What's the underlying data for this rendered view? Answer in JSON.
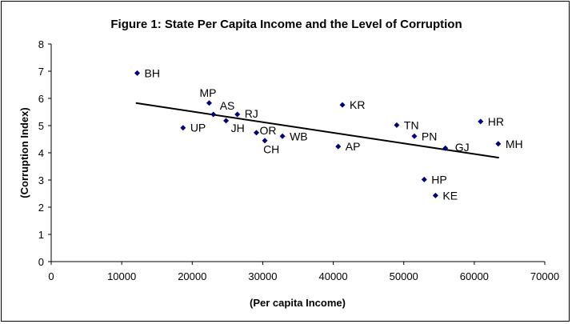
{
  "chart_data": {
    "type": "scatter",
    "title": "Figure 1: State Per Capita Income and the Level of Corruption",
    "xlabel": "(Per capita Income)",
    "ylabel": "(Corruption Index)",
    "xlim": [
      0,
      70000
    ],
    "ylim": [
      0,
      8
    ],
    "xticks": [
      0,
      10000,
      20000,
      30000,
      40000,
      50000,
      60000,
      70000
    ],
    "yticks": [
      0,
      1,
      2,
      3,
      4,
      5,
      6,
      7,
      8
    ],
    "xtick_labels": [
      "0",
      "10000",
      "20000",
      "30000",
      "40000",
      "50000",
      "60000",
      "70000"
    ],
    "ytick_labels": [
      "0",
      "1",
      "2",
      "3",
      "4",
      "5",
      "6",
      "7",
      "8"
    ],
    "grid": false,
    "legend": false,
    "marker_color": "#00007F",
    "line_color": "#000000",
    "points": [
      {
        "label": "BH",
        "x": 12200,
        "y": 6.93
      },
      {
        "label": "UP",
        "x": 18700,
        "y": 4.92
      },
      {
        "label": "MP",
        "x": 22400,
        "y": 5.83
      },
      {
        "label": "AS",
        "x": 23000,
        "y": 5.41
      },
      {
        "label": "JH",
        "x": 24800,
        "y": 5.18
      },
      {
        "label": "RJ",
        "x": 26400,
        "y": 5.41
      },
      {
        "label": "OR",
        "x": 29100,
        "y": 4.74
      },
      {
        "label": "CH",
        "x": 30300,
        "y": 4.45
      },
      {
        "label": "WB",
        "x": 32800,
        "y": 4.61
      },
      {
        "label": "AP",
        "x": 40700,
        "y": 4.23
      },
      {
        "label": "KR",
        "x": 41300,
        "y": 5.76
      },
      {
        "label": "TN",
        "x": 49000,
        "y": 5.02
      },
      {
        "label": "PN",
        "x": 51500,
        "y": 4.61
      },
      {
        "label": "HP",
        "x": 52900,
        "y": 3.02
      },
      {
        "label": "KE",
        "x": 54500,
        "y": 2.43
      },
      {
        "label": "GJ",
        "x": 55900,
        "y": 4.17
      },
      {
        "label": "HR",
        "x": 60900,
        "y": 5.15
      },
      {
        "label": "MH",
        "x": 63400,
        "y": 4.33
      }
    ],
    "trendline": {
      "x": [
        12000,
        63500
      ],
      "y": [
        5.83,
        3.82
      ]
    }
  }
}
